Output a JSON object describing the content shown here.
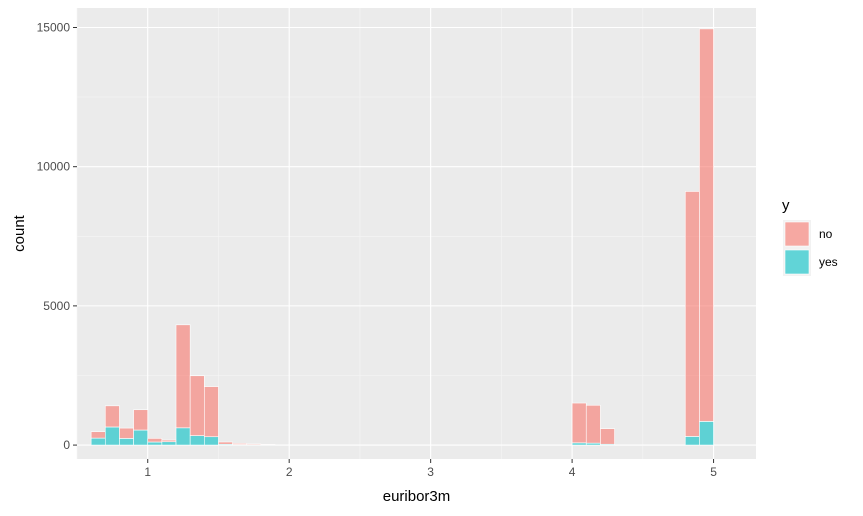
{
  "chart_data": {
    "type": "bar",
    "stacked": true,
    "xlabel": "euribor3m",
    "ylabel": "count",
    "xlim": [
      0.5,
      5.3
    ],
    "ylim": [
      -500,
      15700
    ],
    "x_ticks": [
      1,
      2,
      3,
      4,
      5
    ],
    "y_ticks": [
      0,
      5000,
      10000,
      15000
    ],
    "x_tick_labels": [
      "1",
      "2",
      "3",
      "4",
      "5"
    ],
    "y_tick_labels": [
      "0",
      "5000",
      "10000",
      "15000"
    ],
    "bin_width": 0.1,
    "bins": [
      0.65,
      0.75,
      0.85,
      0.95,
      1.05,
      1.15,
      1.25,
      1.35,
      1.45,
      1.55,
      1.65,
      1.75,
      1.85,
      4.05,
      4.15,
      4.25,
      4.85,
      4.95
    ],
    "series": [
      {
        "name": "no",
        "color": "#F8766D",
        "values": [
          230,
          760,
          370,
          730,
          130,
          60,
          3700,
          2150,
          1800,
          80,
          40,
          30,
          20,
          1430,
          1360,
          560,
          8800,
          14100
        ]
      },
      {
        "name": "yes",
        "color": "#00BFC4",
        "values": [
          250,
          650,
          240,
          540,
          110,
          120,
          620,
          340,
          300,
          30,
          20,
          10,
          5,
          80,
          70,
          30,
          310,
          850
        ]
      }
    ],
    "grid": true,
    "legend": {
      "title": "y",
      "position": "right",
      "entries": [
        "no",
        "yes"
      ]
    },
    "colors": {
      "panel_background": "#EBEBEB",
      "grid_major": "#FFFFFF",
      "grid_minor": "#F5F5F5",
      "bar_outline": "#FFFFFF"
    }
  }
}
